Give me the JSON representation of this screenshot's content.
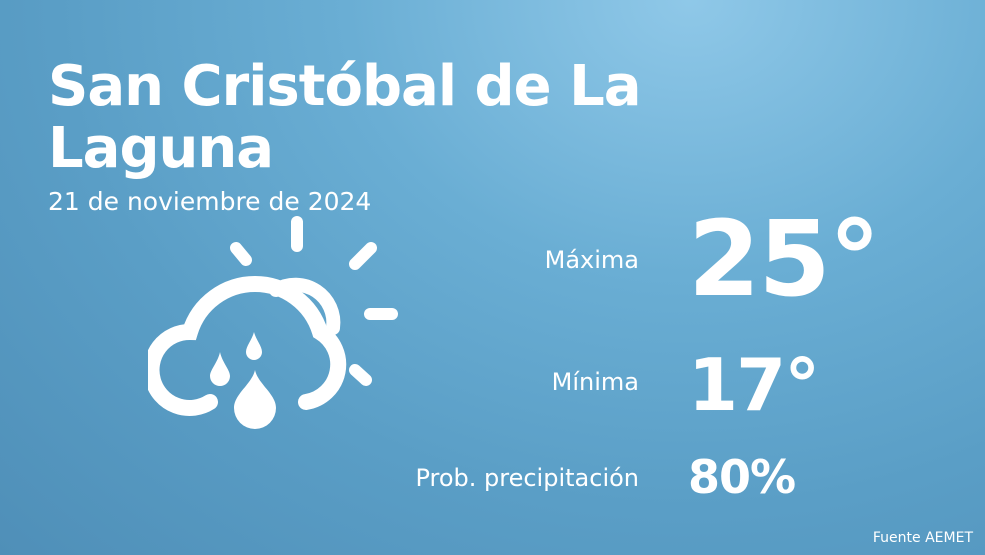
{
  "location": {
    "name": "San Cristóbal de La Laguna"
  },
  "date": "21 de noviembre de 2024",
  "weather_icon": "cloud-sun-rain-icon",
  "forecast": {
    "max_label": "Máxima",
    "max_value": "25°",
    "min_label": "Mínima",
    "min_value": "17°",
    "precip_label": "Prob. precipitación",
    "precip_value": "80%"
  },
  "source": "Fuente AEMET",
  "colors": {
    "background_top": "#8fc8e8",
    "background_bottom": "#4f8fb8",
    "text": "#ffffff"
  }
}
